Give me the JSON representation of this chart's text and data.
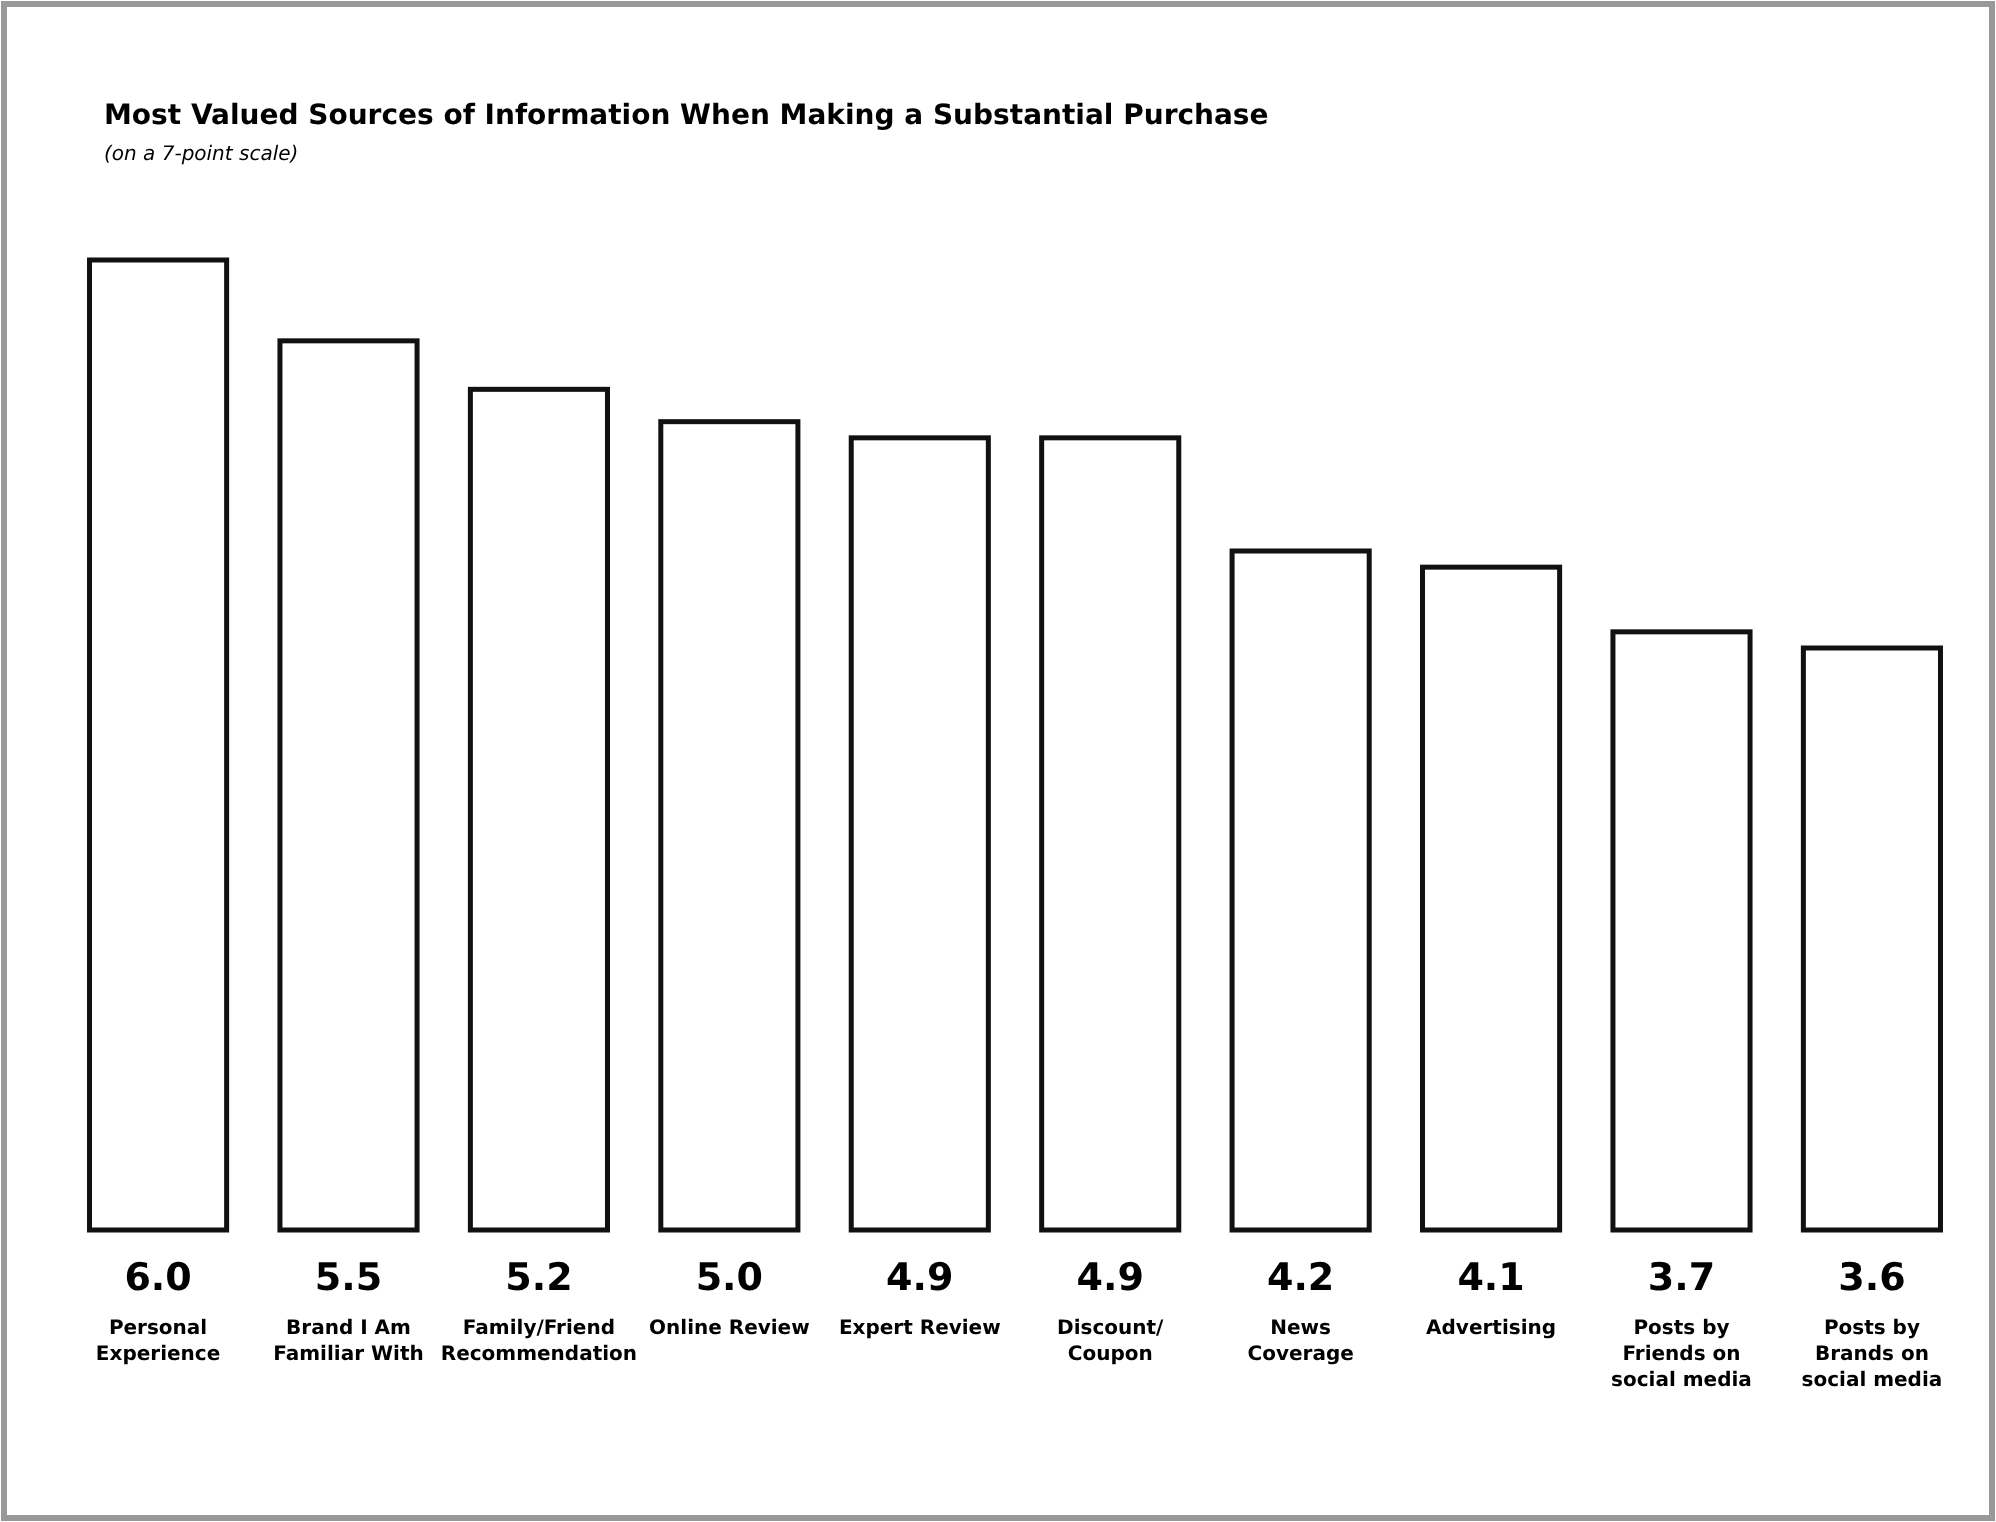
{
  "chart_data": {
    "type": "bar",
    "title": "Most Valued Sources of Information When Making a Substantial Purchase",
    "subtitle": "(on a 7-point scale)",
    "categories": [
      "Personal Experience",
      "Brand I Am Familiar With",
      "Family/Friend Recommendation",
      "Online Review",
      "Expert Review",
      "Discount/ Coupon",
      "News Coverage",
      "Advertising",
      "Posts by Friends on social media",
      "Posts by Brands on social media"
    ],
    "values": [
      6.0,
      5.5,
      5.2,
      5.0,
      4.9,
      4.9,
      4.2,
      4.1,
      3.7,
      3.6
    ],
    "value_labels": [
      "6.0",
      "5.5",
      "5.2",
      "5.0",
      "4.9",
      "4.9",
      "4.2",
      "4.1",
      "3.7",
      "3.6"
    ],
    "color": "#ffffff"
  }
}
